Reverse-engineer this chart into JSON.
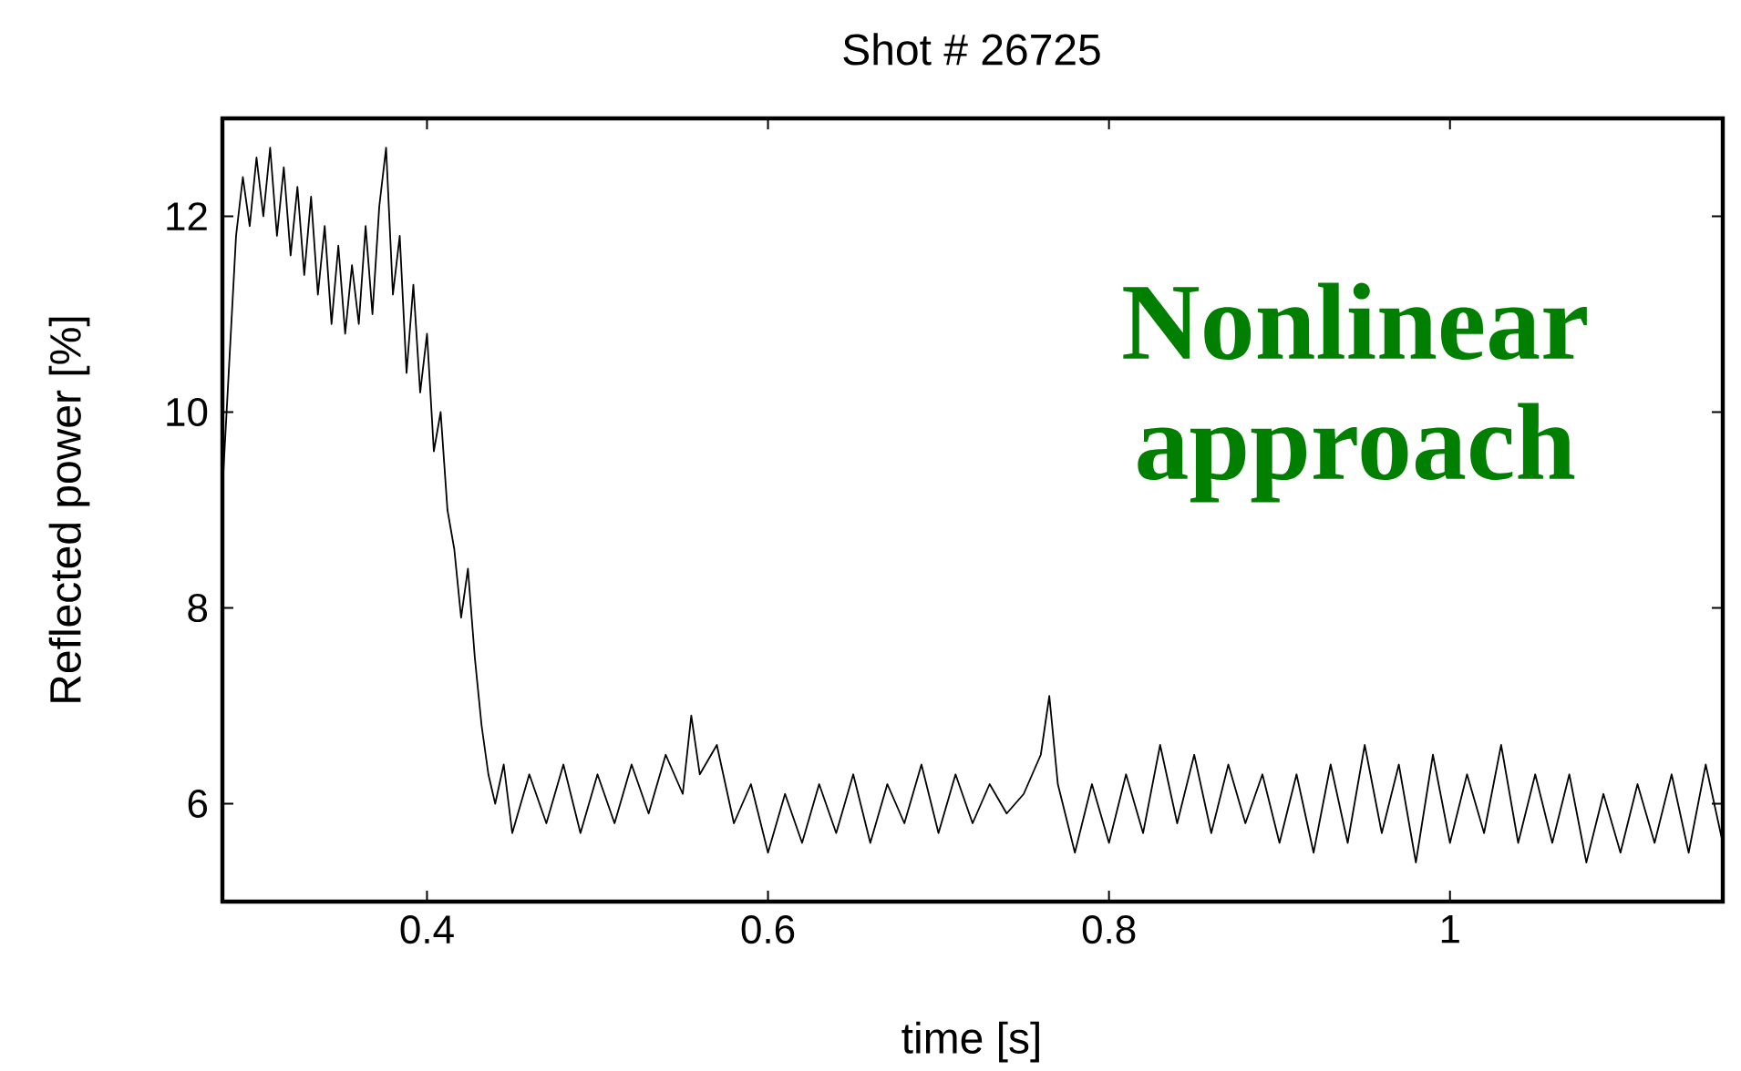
{
  "chart_data": {
    "type": "line",
    "title": "Shot # 26725",
    "xlabel": "time [s]",
    "ylabel": "Reflected power [%]",
    "annotations": [
      "Nonlinear approach"
    ],
    "xlim": [
      0.28,
      1.16
    ],
    "ylim": [
      5,
      13
    ],
    "xticks": [
      0.4,
      0.6,
      0.8,
      1
    ],
    "yticks": [
      6,
      8,
      10,
      12
    ],
    "series": [
      {
        "color": "#000000",
        "x": [
          0.28,
          0.284,
          0.288,
          0.292,
          0.296,
          0.3,
          0.304,
          0.308,
          0.312,
          0.316,
          0.32,
          0.324,
          0.328,
          0.332,
          0.336,
          0.34,
          0.344,
          0.348,
          0.352,
          0.356,
          0.36,
          0.364,
          0.368,
          0.372,
          0.376,
          0.38,
          0.384,
          0.388,
          0.392,
          0.396,
          0.4,
          0.404,
          0.408,
          0.412,
          0.416,
          0.42,
          0.424,
          0.428,
          0.432,
          0.436,
          0.44,
          0.445,
          0.45,
          0.46,
          0.47,
          0.48,
          0.49,
          0.5,
          0.51,
          0.52,
          0.53,
          0.54,
          0.55,
          0.555,
          0.56,
          0.57,
          0.58,
          0.59,
          0.6,
          0.61,
          0.62,
          0.63,
          0.64,
          0.65,
          0.66,
          0.67,
          0.68,
          0.69,
          0.7,
          0.71,
          0.72,
          0.73,
          0.74,
          0.75,
          0.76,
          0.765,
          0.77,
          0.78,
          0.79,
          0.8,
          0.81,
          0.82,
          0.83,
          0.84,
          0.85,
          0.86,
          0.87,
          0.88,
          0.89,
          0.9,
          0.91,
          0.92,
          0.93,
          0.94,
          0.95,
          0.96,
          0.97,
          0.98,
          0.99,
          1.0,
          1.01,
          1.02,
          1.03,
          1.04,
          1.05,
          1.06,
          1.07,
          1.08,
          1.09,
          1.1,
          1.11,
          1.12,
          1.13,
          1.14,
          1.15,
          1.16
        ],
        "values": [
          9.2,
          10.5,
          11.8,
          12.4,
          11.9,
          12.6,
          12.0,
          12.7,
          11.8,
          12.5,
          11.6,
          12.3,
          11.4,
          12.2,
          11.2,
          11.9,
          10.9,
          11.7,
          10.8,
          11.5,
          10.9,
          11.9,
          11.0,
          12.1,
          12.7,
          11.2,
          11.8,
          10.4,
          11.3,
          10.2,
          10.8,
          9.6,
          10.0,
          9.0,
          8.6,
          7.9,
          8.4,
          7.5,
          6.8,
          6.3,
          6.0,
          6.4,
          5.7,
          6.3,
          5.8,
          6.4,
          5.7,
          6.3,
          5.8,
          6.4,
          5.9,
          6.5,
          6.1,
          6.9,
          6.3,
          6.6,
          5.8,
          6.2,
          5.5,
          6.1,
          5.6,
          6.2,
          5.7,
          6.3,
          5.6,
          6.2,
          5.8,
          6.4,
          5.7,
          6.3,
          5.8,
          6.2,
          5.9,
          6.1,
          6.5,
          7.1,
          6.2,
          5.5,
          6.2,
          5.6,
          6.3,
          5.7,
          6.6,
          5.8,
          6.5,
          5.7,
          6.4,
          5.8,
          6.3,
          5.6,
          6.3,
          5.5,
          6.4,
          5.6,
          6.6,
          5.7,
          6.4,
          5.4,
          6.5,
          5.6,
          6.3,
          5.7,
          6.6,
          5.6,
          6.3,
          5.6,
          6.3,
          5.4,
          6.1,
          5.5,
          6.2,
          5.6,
          6.3,
          5.5,
          6.4,
          5.6
        ]
      }
    ]
  }
}
